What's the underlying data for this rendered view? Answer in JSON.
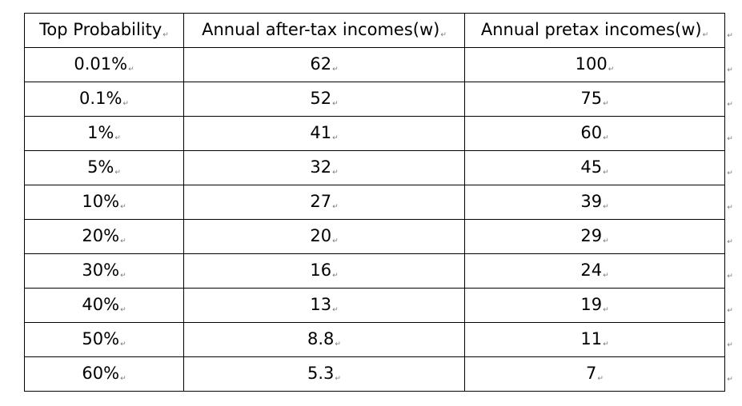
{
  "table": {
    "headers": [
      "Top Probability",
      "Annual after-tax incomes(w)",
      "Annual pretax incomes(w)"
    ],
    "rows": [
      [
        "0.01%",
        "62",
        "100"
      ],
      [
        "0.1%",
        "52",
        "75"
      ],
      [
        "1%",
        "41",
        "60"
      ],
      [
        "5%",
        "32",
        "45"
      ],
      [
        "10%",
        "27",
        "39"
      ],
      [
        "20%",
        "20",
        "29"
      ],
      [
        "30%",
        "16",
        "24"
      ],
      [
        "40%",
        "13",
        "19"
      ],
      [
        "50%",
        "8.8",
        "11"
      ],
      [
        "60%",
        "5.3",
        "7"
      ]
    ]
  },
  "paragraph_mark": "↵"
}
